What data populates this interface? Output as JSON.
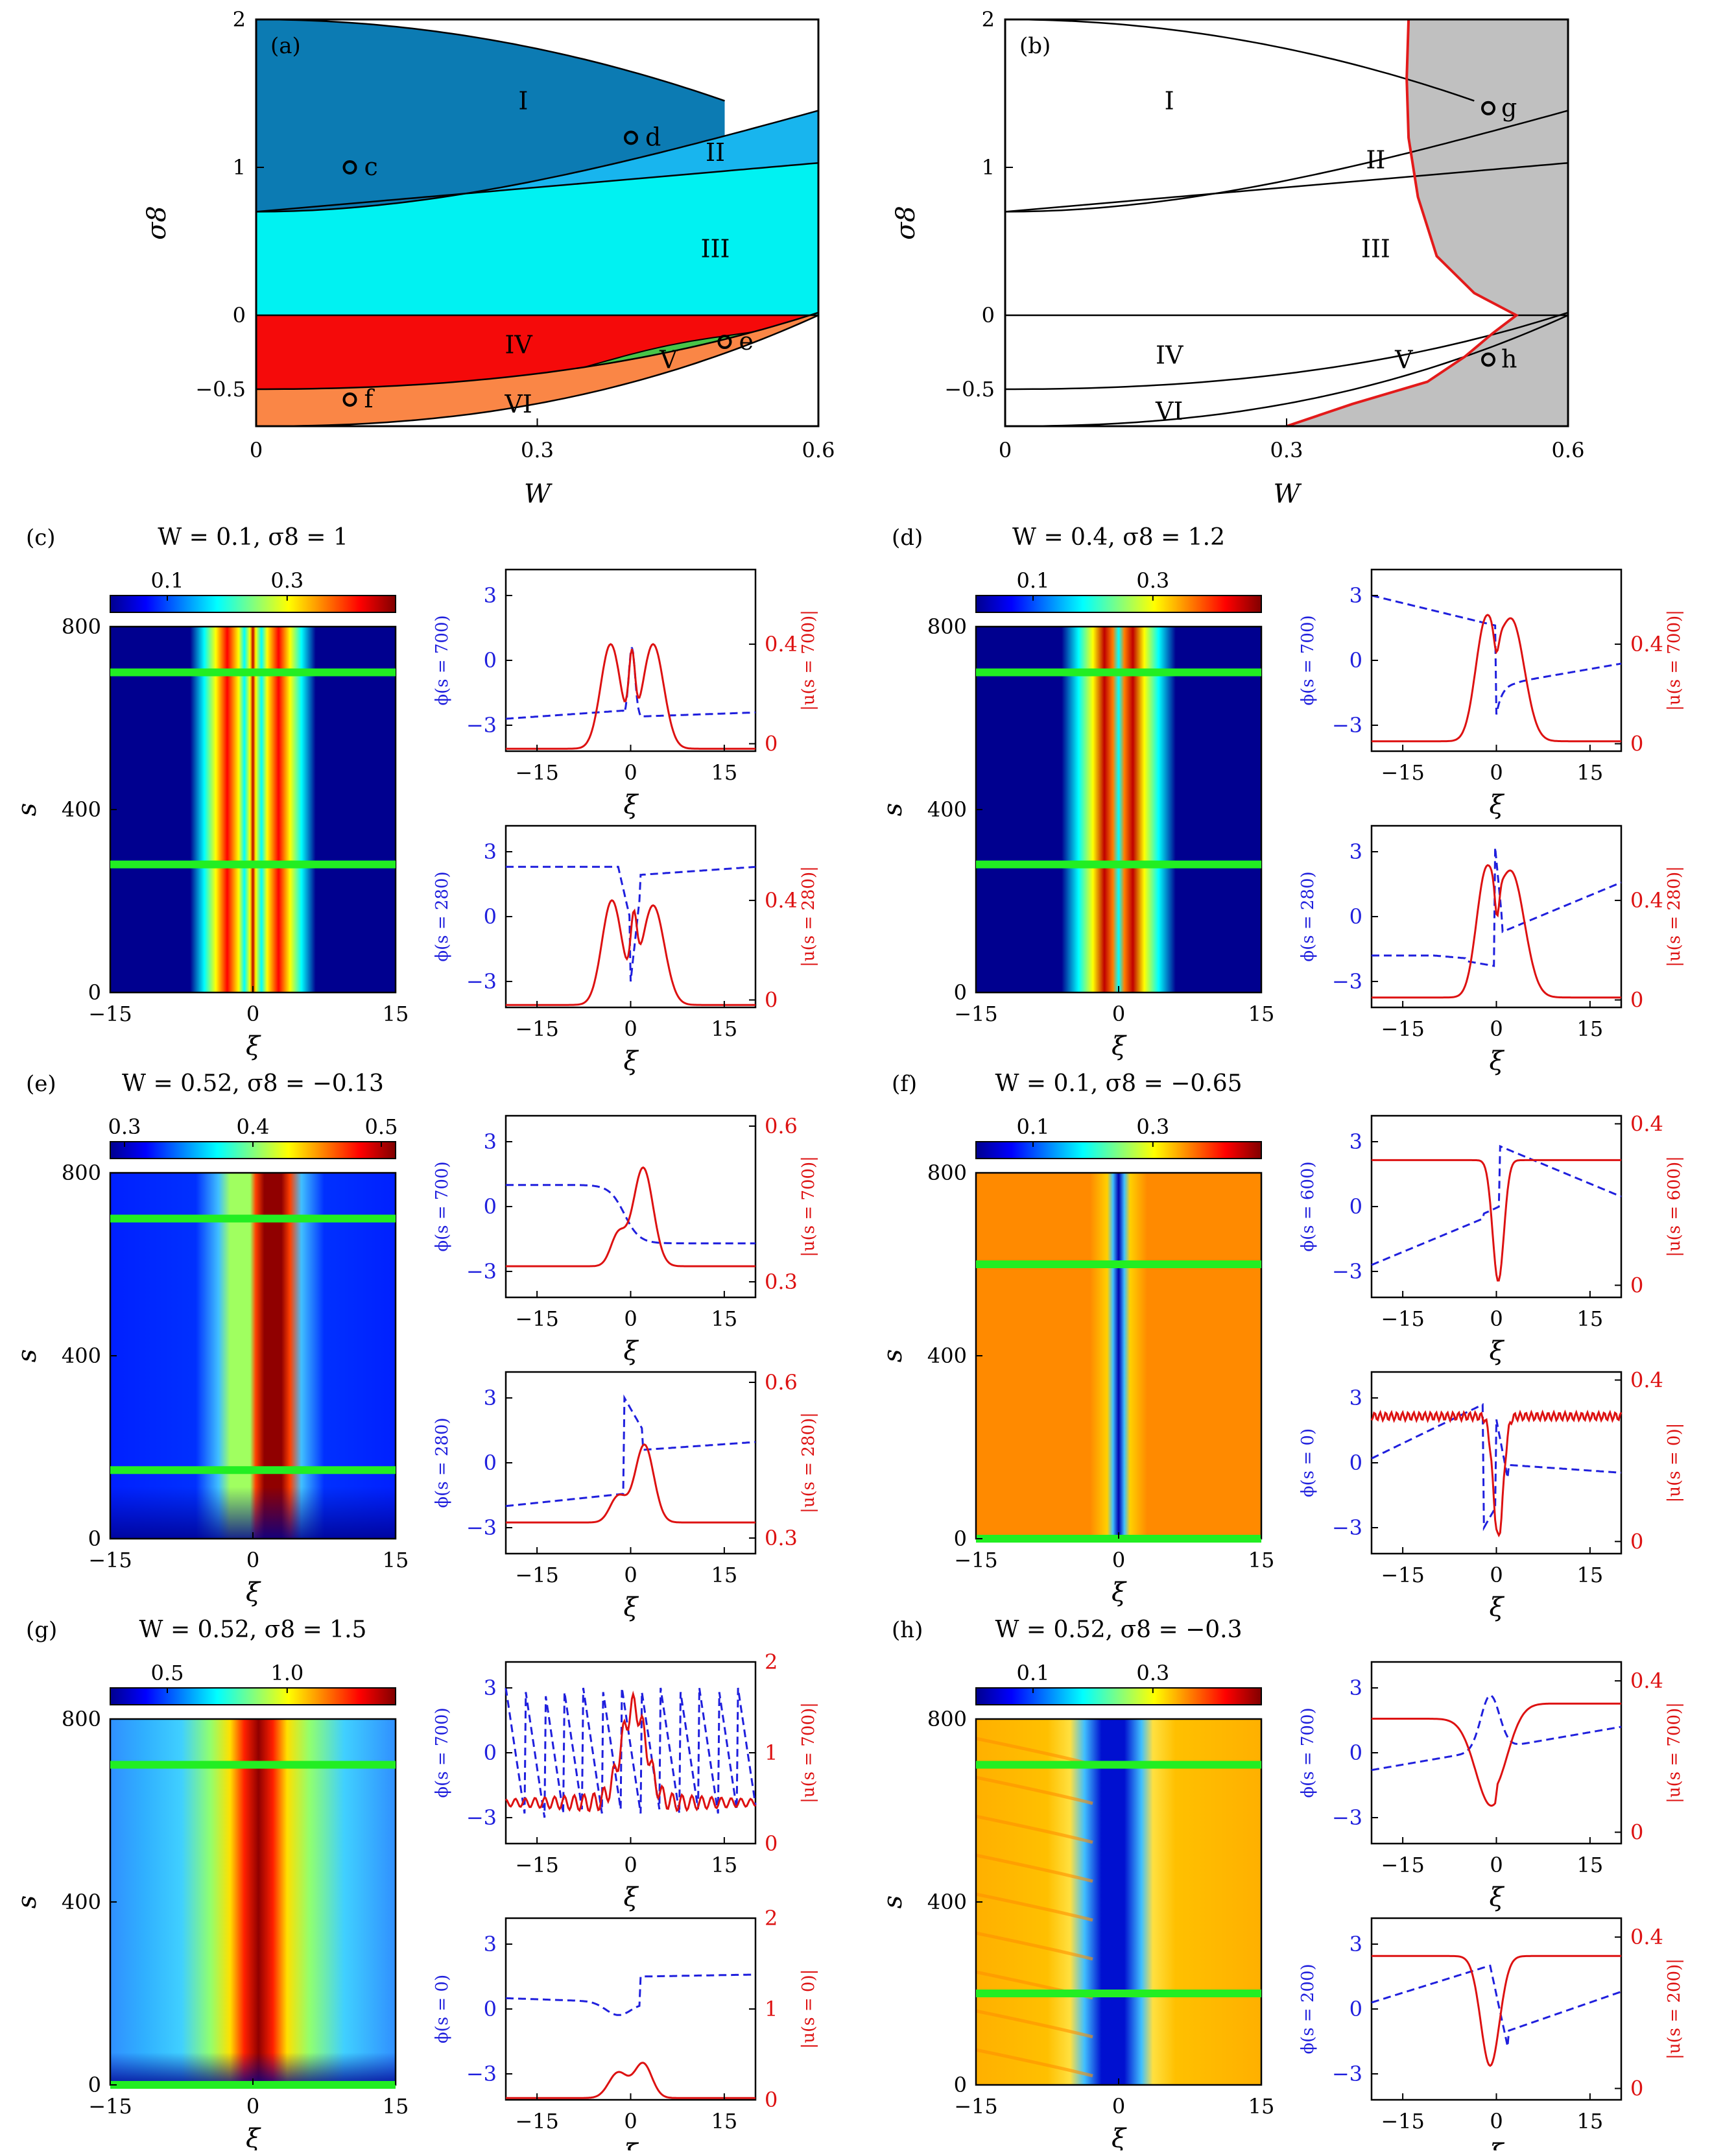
{
  "phase_diagram_a": {
    "label": "(a)",
    "xlabel": "W",
    "ylabel": "σ8",
    "xticks": [
      "0",
      "0.3",
      "0.6"
    ],
    "yticks": [
      "2",
      "1",
      "0",
      "−0.5"
    ],
    "regions": [
      "I",
      "II",
      "III",
      "IV",
      "V",
      "VI"
    ],
    "points": [
      "c",
      "d",
      "e",
      "f"
    ],
    "colors": {
      "I": "#0c7bb3",
      "II": "#18b5ee",
      "III": "#00f2f2",
      "IV": "#f50a0a",
      "V": "#48c448",
      "VI": "#fa8646"
    }
  },
  "phase_diagram_b": {
    "label": "(b)",
    "xlabel": "W",
    "ylabel": "σ8",
    "xticks": [
      "0",
      "0.3",
      "0.6"
    ],
    "yticks": [
      "2",
      "1",
      "0",
      "−0.5"
    ],
    "regions": [
      "I",
      "II",
      "III",
      "IV",
      "V",
      "VI"
    ],
    "points": [
      "g",
      "h"
    ],
    "unstable_fill": "#c0c0c0",
    "boundary_color": "#e31a1a"
  },
  "panels": {
    "c": {
      "label": "(c)",
      "title": "W = 0.1, σ8 = 1",
      "cbar_ticks": [
        "0.1",
        "0.3"
      ],
      "top": {
        "phi": "ϕ(s = 700)",
        "u": "|u(s = 700)|",
        "u_ticks": [
          "0.4",
          "0"
        ]
      },
      "bot": {
        "phi": "ϕ(s = 280)",
        "u": "|u(s = 280)|",
        "u_ticks": [
          "0.4",
          "0"
        ]
      }
    },
    "d": {
      "label": "(d)",
      "title": "W = 0.4, σ8 = 1.2",
      "cbar_ticks": [
        "0.1",
        "0.3"
      ],
      "top": {
        "phi": "ϕ(s = 700)",
        "u": "|u(s = 700)|",
        "u_ticks": [
          "0.4",
          "0"
        ]
      },
      "bot": {
        "phi": "ϕ(s = 280)",
        "u": "|u(s = 280)|",
        "u_ticks": [
          "0.4",
          "0"
        ]
      }
    },
    "e": {
      "label": "(e)",
      "title": "W = 0.52, σ8 = −0.13",
      "cbar_ticks": [
        "0.3",
        "0.4",
        "0.5"
      ],
      "top": {
        "phi": "ϕ(s = 700)",
        "u": "|u(s = 700)|",
        "u_ticks": [
          "0.6",
          "0.3"
        ]
      },
      "bot": {
        "phi": "ϕ(s = 280)",
        "u": "|u(s = 280)|",
        "u_ticks": [
          "0.6",
          "0.3"
        ]
      }
    },
    "f": {
      "label": "(f)",
      "title": "W = 0.1, σ8 = −0.65",
      "cbar_ticks": [
        "0.1",
        "0.3"
      ],
      "top": {
        "phi": "ϕ(s = 600)",
        "u": "|u(s = 600)|",
        "u_ticks": [
          "0.4",
          "0"
        ]
      },
      "bot": {
        "phi": "ϕ(s = 0)",
        "u": "|u(s = 0)|",
        "u_ticks": [
          "0.4",
          "0"
        ]
      }
    },
    "g": {
      "label": "(g)",
      "title": "W = 0.52, σ8 = 1.5",
      "cbar_ticks": [
        "0.5",
        "1.0"
      ],
      "top": {
        "phi": "ϕ(s = 700)",
        "u": "|u(s = 700)|",
        "u_ticks": [
          "2",
          "1",
          "0"
        ]
      },
      "bot": {
        "phi": "ϕ(s = 0)",
        "u": "|u(s = 0)|",
        "u_ticks": [
          "2",
          "1",
          "0"
        ]
      }
    },
    "h": {
      "label": "(h)",
      "title": "W = 0.52, σ8 = −0.3",
      "cbar_ticks": [
        "0.1",
        "0.3"
      ],
      "top": {
        "phi": "ϕ(s = 700)",
        "u": "|u(s = 700)|",
        "u_ticks": [
          "0.4",
          "0"
        ]
      },
      "bot": {
        "phi": "ϕ(s = 200)",
        "u": "|u(s = 200)|",
        "u_ticks": [
          "0.4",
          "0"
        ]
      }
    }
  },
  "common": {
    "map_xlabel": "ξ",
    "map_ylabel": "s",
    "map_xticks": [
      "−15",
      "0",
      "15"
    ],
    "map_yticks": [
      "800",
      "400",
      "0"
    ],
    "line_xlabel": "ξ",
    "line_xticks": [
      "−15",
      "0",
      "15"
    ],
    "phi_ticks": [
      "3",
      "0",
      "−3"
    ],
    "phi_color": "#1f1fdd",
    "u_color": "#dd1111",
    "marker_color": "#22ee22"
  }
}
